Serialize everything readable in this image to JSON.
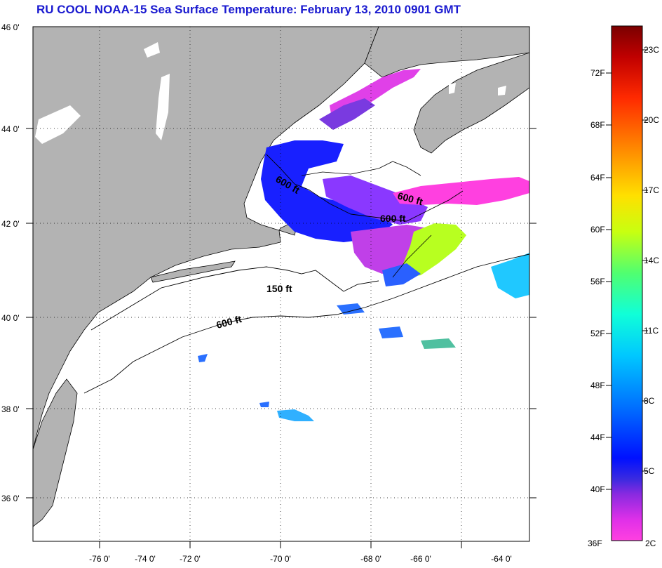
{
  "title": "RU COOL  NOAA-15  Sea Surface Temperature:  February 13, 2010 0901 GMT",
  "map": {
    "lon_ticks": [
      "-76 0'",
      "-74 0'",
      "-72 0'",
      "-70 0'",
      "-68 0'",
      "-66 0'",
      "-64 0'"
    ],
    "lat_ticks": [
      "46 0'",
      "44 0'",
      "42 0'",
      "40 0'",
      "38 0'",
      "36 0'"
    ],
    "contour_labels": [
      "600 ft",
      "600 ft",
      "600 ft",
      "150 ft",
      "600 ft"
    ],
    "colors": {
      "land": "#b3b3b3",
      "ocean": "#ffffff",
      "grid": "#000000"
    }
  },
  "colorbar": {
    "f_labels": [
      "72F",
      "68F",
      "64F",
      "60F",
      "56F",
      "52F",
      "48F",
      "44F",
      "40F",
      "36F"
    ],
    "c_labels": [
      "23C",
      "20C",
      "17C",
      "14C",
      "11C",
      "8C",
      "5C",
      "2C"
    ],
    "gradient": [
      "#7a0000",
      "#d40000",
      "#ff3000",
      "#ff8000",
      "#ffd000",
      "#e0ff00",
      "#80ff40",
      "#20ffc0",
      "#00e0ff",
      "#00a0ff",
      "#0050ff",
      "#0000ff",
      "#8040ff",
      "#c040ff",
      "#ff40ff",
      "#ff20d0"
    ]
  }
}
